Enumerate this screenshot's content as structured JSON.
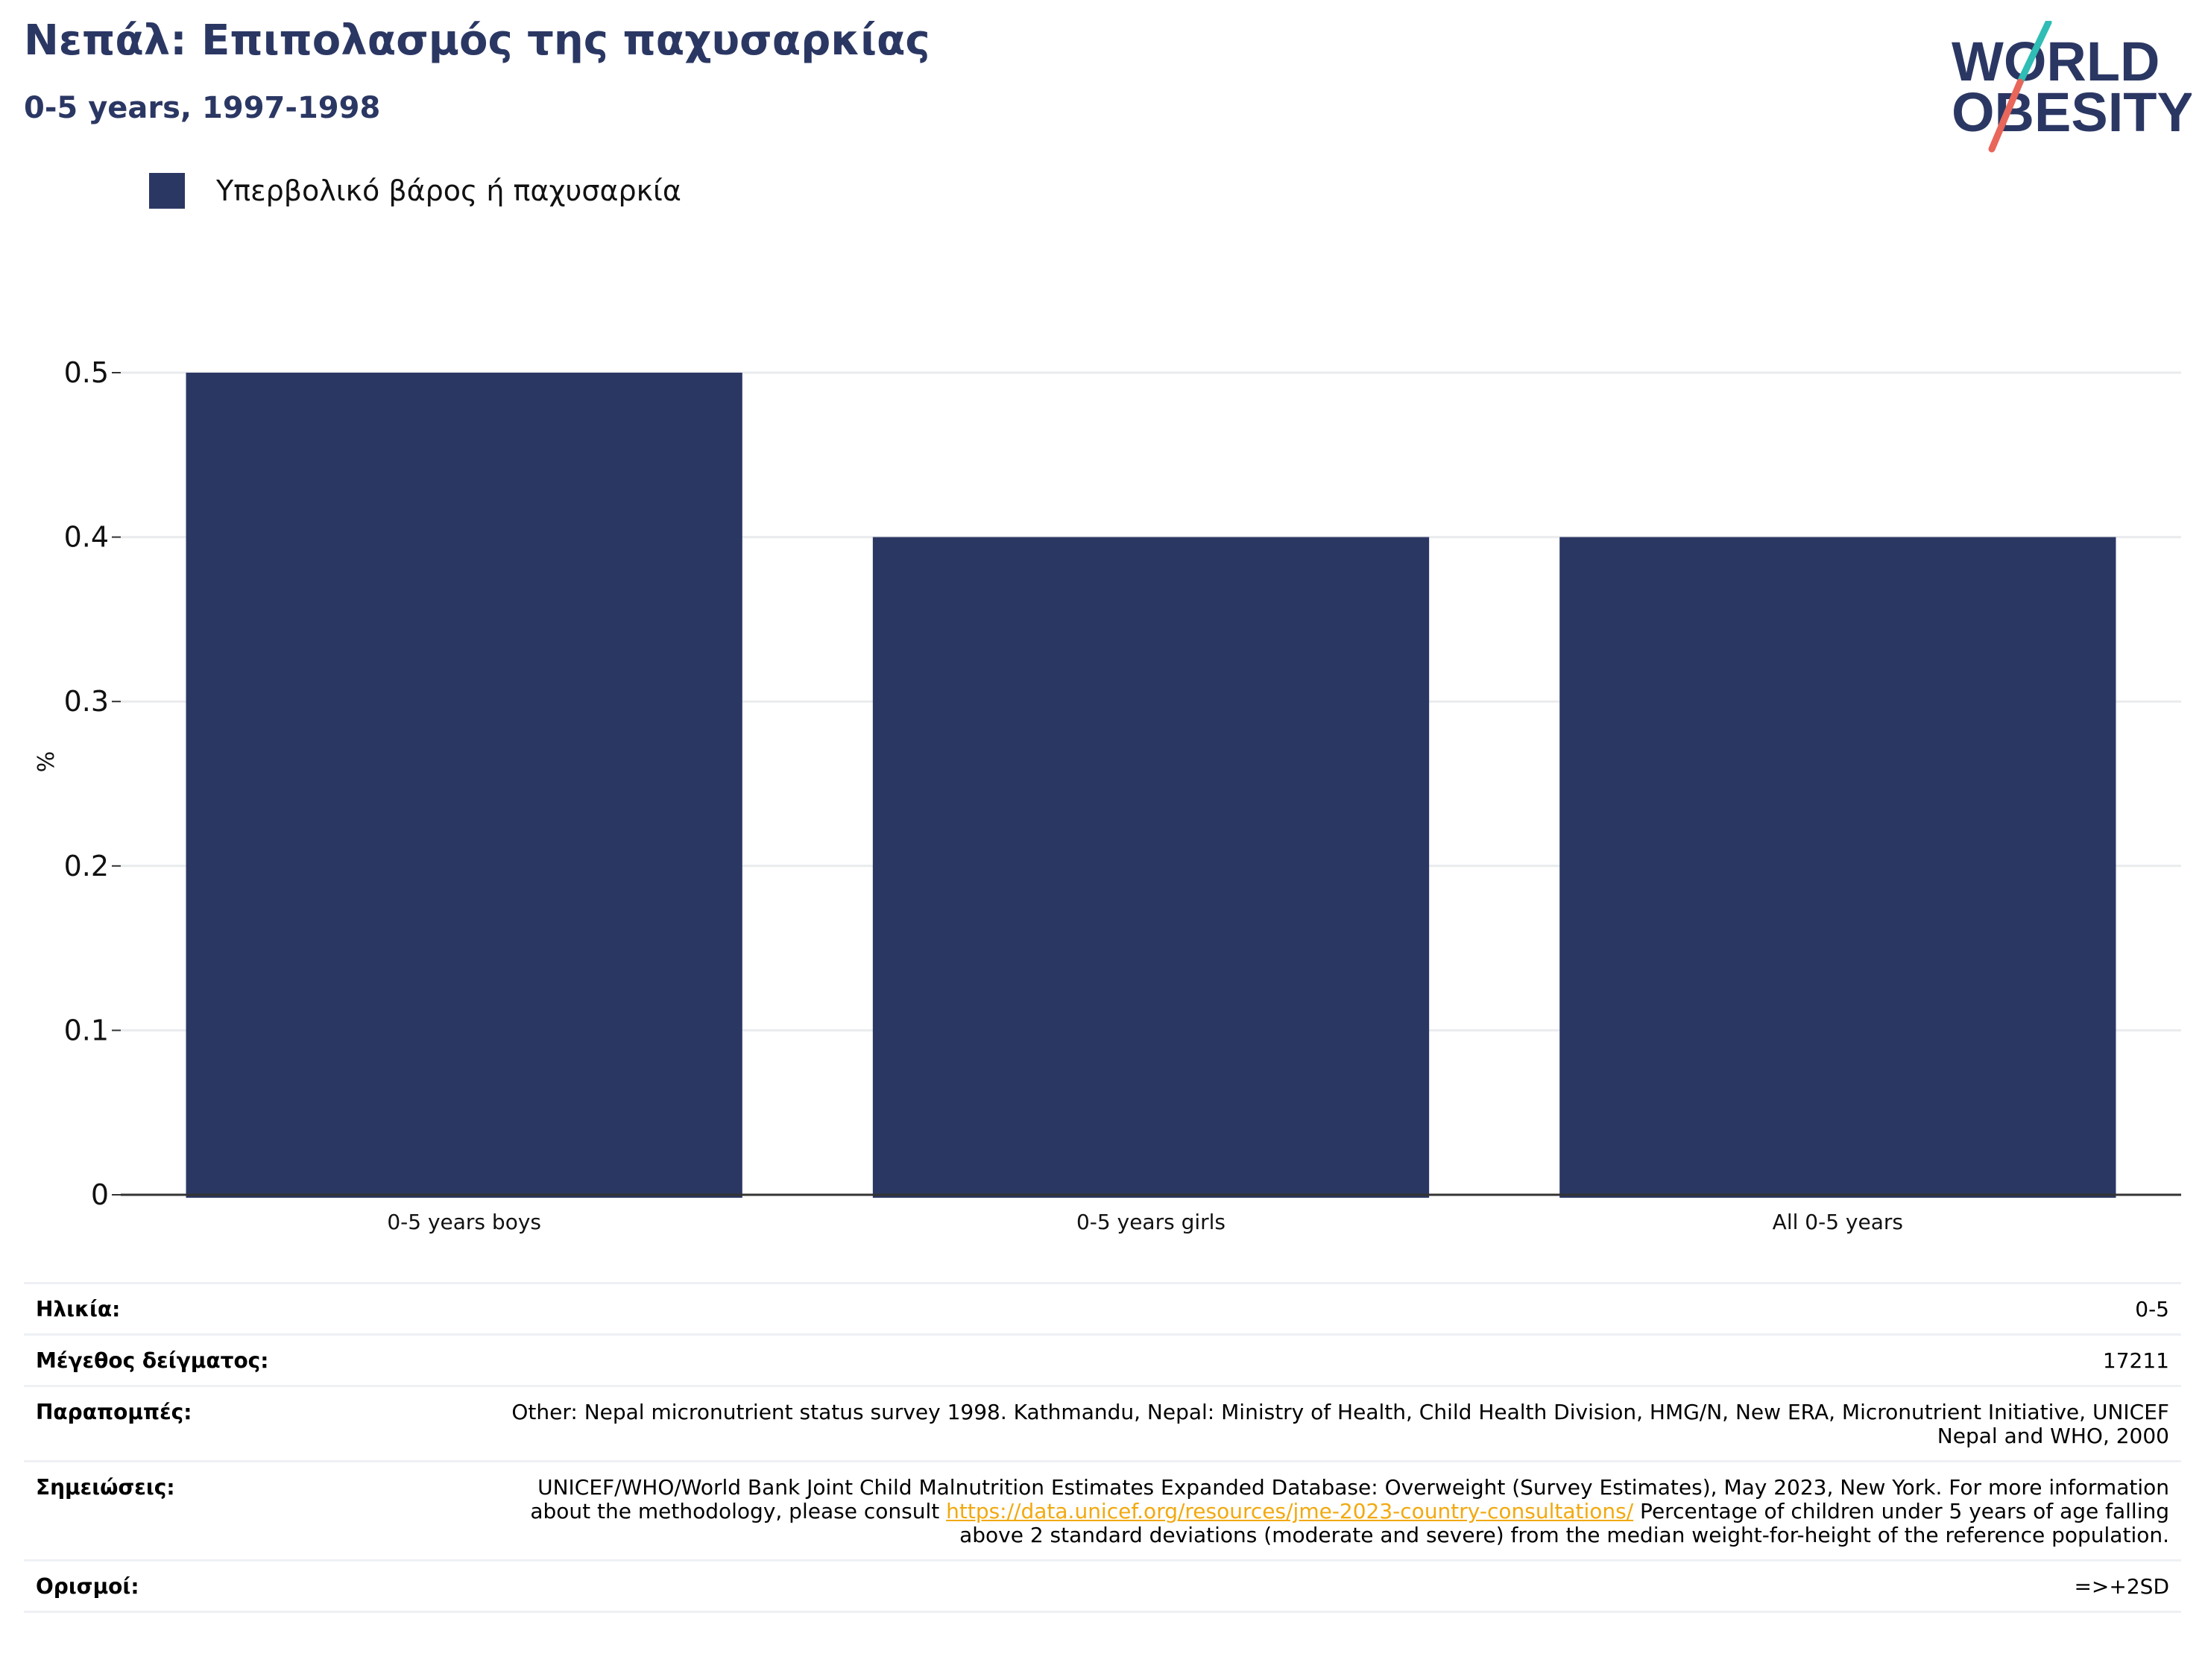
{
  "header": {
    "title": "Νεπάλ: Επιπολασμός της παχυσαρκίας",
    "subtitle": "0-5 years, 1997-1998"
  },
  "logo": {
    "line1": "WORLD",
    "line2": "OBESITY",
    "colors": {
      "text": "#2b3763",
      "slash_top": "#2fbdb5",
      "slash_bottom": "#e8665a"
    }
  },
  "legend": {
    "items": [
      {
        "label": "Υπερβολικό βάρος ή παχυσαρκία",
        "color": "#2b3763"
      }
    ]
  },
  "chart_data": {
    "type": "bar",
    "categories": [
      "0-5 years boys",
      "0-5 years girls",
      "All 0-5 years"
    ],
    "series": [
      {
        "name": "Υπερβολικό βάρος ή παχυσαρκία",
        "values": [
          0.5,
          0.4,
          0.4
        ],
        "color": "#2b3763"
      }
    ],
    "ylabel": "%",
    "ylim": [
      0,
      0.5
    ],
    "yticks": [
      "0",
      "0.1",
      "0.2",
      "0.3",
      "0.4",
      "0.5"
    ],
    "grid": true,
    "legend_position": "top-left"
  },
  "info": {
    "age": {
      "label": "Ηλικία:",
      "value": "0-5"
    },
    "sample": {
      "label": "Μέγεθος δείγματος:",
      "value": "17211"
    },
    "refs": {
      "label": "Παραπομπές:",
      "value": "Other: Nepal micronutrient status survey 1998. Kathmandu, Nepal: Ministry of Health, Child Health Division, HMG/N, New ERA, Micronutrient Initiative, UNICEF Nepal and WHO, 2000"
    },
    "notes": {
      "label": "Σημειώσεις:",
      "before": "UNICEF/WHO/World Bank Joint Child Malnutrition Estimates Expanded Database: Overweight (Survey Estimates), May 2023, New York. For more information about the methodology, please consult ",
      "link": "https://data.unicef.org/resources/jme-2023-country-consultations/",
      "after": " Percentage of children under 5 years of age falling above 2 standard deviations (moderate and severe) from the median weight-for-height of the reference population."
    },
    "defs": {
      "label": "Ορισμοί:",
      "value": "=>+2SD"
    }
  }
}
